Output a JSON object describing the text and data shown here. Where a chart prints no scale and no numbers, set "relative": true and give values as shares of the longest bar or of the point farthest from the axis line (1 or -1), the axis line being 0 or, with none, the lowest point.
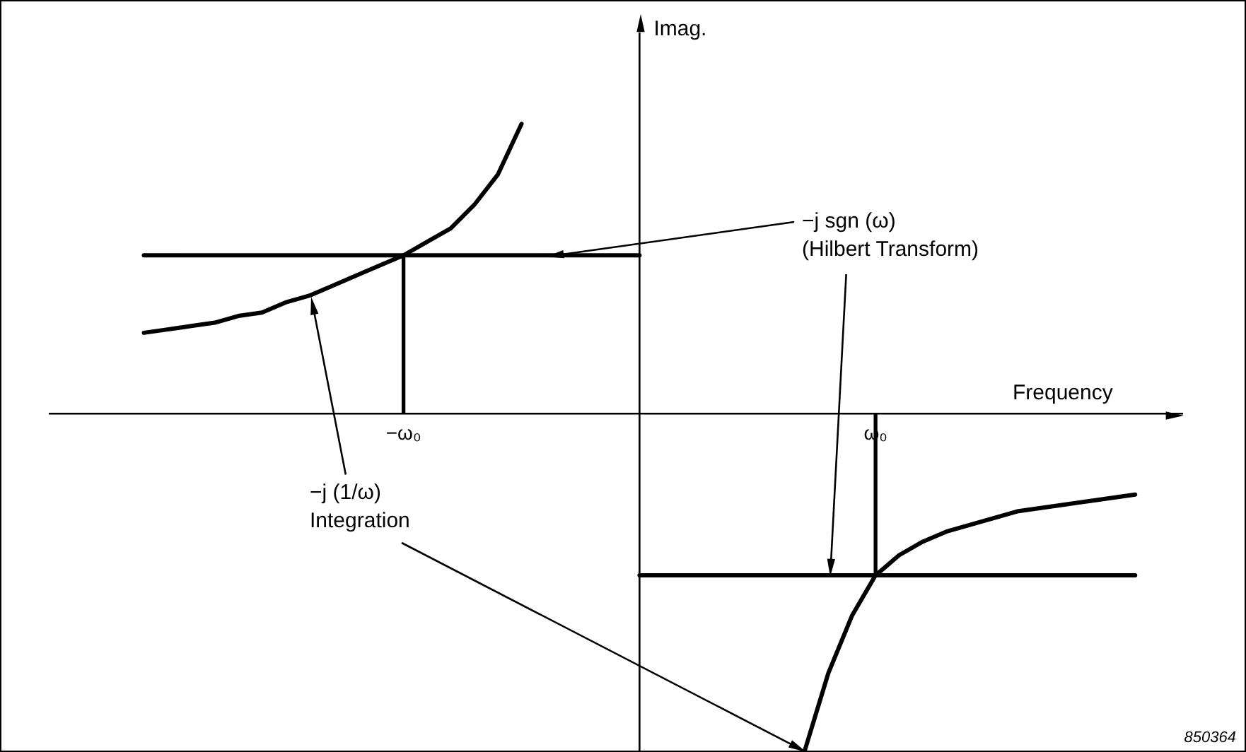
{
  "chart_data": {
    "type": "line",
    "relative": true,
    "xlabel": "Frequency",
    "categories": [
      null,
      null,
      null,
      null,
      null,
      null,
      null,
      null,
      null,
      null,
      null,
      null,
      null,
      null,
      null,
      "−ω₀",
      null,
      null,
      null,
      null,
      null,
      null,
      null,
      null,
      null,
      null,
      null,
      null,
      null,
      null,
      null,
      null,
      null,
      null,
      null,
      "ω₀",
      null,
      null,
      null,
      null,
      null,
      null,
      null,
      null,
      null,
      null,
      null,
      null,
      null
    ],
    "grid": false,
    "legend": false,
    "marker": "none",
    "line_style": "solid",
    "series": [
      {
        "color": "#000000",
        "values": [
          null,
          null,
          null,
          null,
          0.47,
          0.47,
          0.47,
          0.47,
          0.47,
          0.47,
          0.47,
          0.47,
          0.47,
          0.47,
          0.47,
          0.47,
          0.47,
          0.47,
          0.47,
          0.47,
          0.47,
          0.47,
          0.47,
          0.47,
          0.47,
          0.47,
          null,
          null,
          null,
          null,
          null,
          null,
          null,
          null,
          null,
          null,
          null,
          null,
          null,
          null,
          null,
          null,
          null,
          null,
          null,
          null,
          null,
          null,
          null
        ]
      },
      {
        "color": "#000000",
        "values": [
          null,
          null,
          null,
          null,
          null,
          null,
          null,
          null,
          null,
          null,
          null,
          null,
          null,
          null,
          null,
          null,
          null,
          null,
          null,
          null,
          null,
          null,
          null,
          null,
          null,
          -0.48,
          -0.48,
          -0.48,
          -0.48,
          -0.48,
          -0.48,
          -0.48,
          -0.48,
          -0.48,
          -0.48,
          -0.48,
          -0.48,
          -0.48,
          -0.48,
          -0.48,
          -0.48,
          -0.48,
          -0.48,
          -0.48,
          -0.48,
          -0.48,
          -0.48,
          null,
          null
        ]
      },
      {
        "color": "#000000",
        "values": [
          null,
          null,
          null,
          null,
          0.24,
          0.25,
          0.26,
          0.27,
          0.29,
          0.3,
          0.33,
          0.35,
          0.38,
          0.41,
          0.44,
          0.47,
          0.51,
          0.55,
          0.62,
          0.71,
          0.86,
          null,
          null,
          null,
          null,
          null,
          null,
          null,
          null,
          null,
          null,
          null,
          null,
          null,
          null,
          null,
          null,
          null,
          null,
          null,
          null,
          null,
          null,
          null,
          null,
          null,
          null,
          null,
          null
        ]
      },
      {
        "color": "#000000",
        "values": [
          null,
          null,
          null,
          null,
          null,
          null,
          null,
          null,
          null,
          null,
          null,
          null,
          null,
          null,
          null,
          null,
          null,
          null,
          null,
          null,
          null,
          null,
          null,
          null,
          null,
          null,
          null,
          null,
          null,
          null,
          null,
          null,
          -1.0,
          -0.77,
          -0.6,
          -0.48,
          -0.42,
          -0.38,
          -0.35,
          -0.33,
          -0.31,
          -0.29,
          -0.28,
          -0.27,
          -0.26,
          -0.25,
          -0.24,
          null,
          null
        ]
      },
      {
        "type": "bar",
        "color": "#000000",
        "values": [
          null,
          null,
          null,
          null,
          null,
          null,
          null,
          null,
          null,
          null,
          null,
          null,
          null,
          null,
          null,
          0.47,
          null,
          null,
          null,
          null,
          null,
          null,
          null,
          null,
          null,
          null,
          null,
          null,
          null,
          null,
          null,
          null,
          null,
          null,
          null,
          -0.48,
          null,
          null,
          null,
          null,
          null,
          null,
          null,
          null,
          null,
          null,
          null,
          null,
          null
        ]
      }
    ],
    "annotations": [
      "Imag.",
      "−j sgn (ω)\n(Hilbert Transform)",
      "−j (1/ω)\nIntegration",
      "850364"
    ]
  }
}
